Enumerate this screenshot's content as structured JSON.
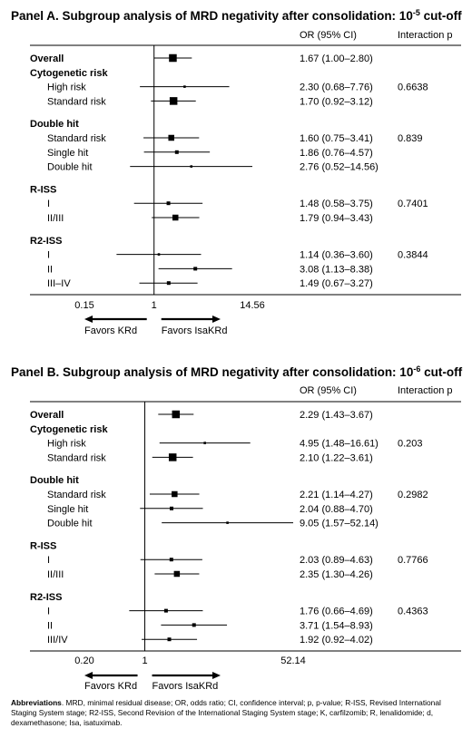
{
  "chart_data": [
    {
      "type": "forest",
      "title": "Panel A. Subgroup analysis of MRD negativity after consolidation: 10",
      "title_superscript": "-5",
      "title_suffix": " cut-off",
      "col_or": "OR (95% CI)",
      "col_p": "Interaction p",
      "x_scale": "log",
      "x_ticks": [
        "0.15",
        "1",
        "14.56"
      ],
      "x_tick_values": [
        0.15,
        1,
        14.56
      ],
      "favors_left": "Favors KRd",
      "favors_right": "Favors IsaKRd",
      "rows": [
        {
          "label": "Overall",
          "header": true,
          "or": 1.67,
          "lo": 1.0,
          "hi": 2.8,
          "text": "1.67 (1.00–2.80)",
          "p": "",
          "size": "large"
        },
        {
          "label": "Cytogenetic risk",
          "header": true
        },
        {
          "label": "High risk",
          "or": 2.3,
          "lo": 0.68,
          "hi": 7.76,
          "text": "2.30 (0.68–7.76)",
          "p": "0.6638",
          "size": "tiny"
        },
        {
          "label": "Standard risk",
          "or": 1.7,
          "lo": 0.92,
          "hi": 3.12,
          "text": "1.70 (0.92–3.12)",
          "p": "",
          "size": "large"
        },
        {
          "gap": true
        },
        {
          "label": "Double hit",
          "header": true
        },
        {
          "label": "Standard risk",
          "or": 1.6,
          "lo": 0.75,
          "hi": 3.41,
          "text": "1.60 (0.75–3.41)",
          "p": "0.839",
          "size": "medium"
        },
        {
          "label": "Single hit",
          "or": 1.86,
          "lo": 0.76,
          "hi": 4.57,
          "text": "1.86 (0.76–4.57)",
          "p": "",
          "size": "small"
        },
        {
          "label": "Double hit",
          "or": 2.76,
          "lo": 0.52,
          "hi": 14.56,
          "text": "2.76 (0.52–14.56)",
          "p": "",
          "size": "tiny"
        },
        {
          "gap": true
        },
        {
          "label": "R-ISS",
          "header": true
        },
        {
          "label": "I",
          "or": 1.48,
          "lo": 0.58,
          "hi": 3.75,
          "text": "1.48 (0.58–3.75)",
          "p": "0.7401",
          "size": "small"
        },
        {
          "label": "II/III",
          "or": 1.79,
          "lo": 0.94,
          "hi": 3.43,
          "text": "1.79 (0.94–3.43)",
          "p": "",
          "size": "medium"
        },
        {
          "gap": true
        },
        {
          "label": "R2-ISS",
          "header": true
        },
        {
          "label": "I",
          "or": 1.14,
          "lo": 0.36,
          "hi": 3.6,
          "text": "1.14 (0.36–3.60)",
          "p": "0.3844",
          "size": "tiny"
        },
        {
          "label": "II",
          "or": 3.08,
          "lo": 1.13,
          "hi": 8.38,
          "text": "3.08 (1.13–8.38)",
          "p": "",
          "size": "small"
        },
        {
          "label": "III–IV",
          "or": 1.49,
          "lo": 0.67,
          "hi": 3.27,
          "text": "1.49 (0.67–3.27)",
          "p": "",
          "size": "small"
        }
      ]
    },
    {
      "type": "forest",
      "title": "Panel B. Subgroup analysis of MRD negativity after consolidation: 10",
      "title_superscript": "-6",
      "title_suffix": " cut-off",
      "col_or": "OR (95% CI)",
      "col_p": "Interaction p",
      "x_scale": "log",
      "x_ticks": [
        "0.20",
        "1",
        "52.14"
      ],
      "x_tick_values": [
        0.2,
        1,
        52.14
      ],
      "favors_left": "Favors KRd",
      "favors_right": "Favors IsaKRd",
      "rows": [
        {
          "label": "Overall",
          "header": true,
          "or": 2.29,
          "lo": 1.43,
          "hi": 3.67,
          "text": "2.29 (1.43–3.67)",
          "p": "",
          "size": "large"
        },
        {
          "label": "Cytogenetic risk",
          "header": true
        },
        {
          "label": "High risk",
          "or": 4.95,
          "lo": 1.48,
          "hi": 16.61,
          "text": "4.95 (1.48–16.61)",
          "p": "0.203",
          "size": "tiny"
        },
        {
          "label": "Standard risk",
          "or": 2.1,
          "lo": 1.22,
          "hi": 3.61,
          "text": "2.10 (1.22–3.61)",
          "p": "",
          "size": "large"
        },
        {
          "gap": true
        },
        {
          "label": "Double hit",
          "header": true
        },
        {
          "label": "Standard risk",
          "or": 2.21,
          "lo": 1.14,
          "hi": 4.27,
          "text": "2.21 (1.14–4.27)",
          "p": "0.2982",
          "size": "medium"
        },
        {
          "label": "Single hit",
          "or": 2.04,
          "lo": 0.88,
          "hi": 4.7,
          "text": "2.04 (0.88–4.70)",
          "p": "",
          "size": "small"
        },
        {
          "label": "Double hit",
          "or": 9.05,
          "lo": 1.57,
          "hi": 52.14,
          "text": "9.05 (1.57–52.14)",
          "p": "",
          "size": "tiny"
        },
        {
          "gap": true
        },
        {
          "label": "R-ISS",
          "header": true
        },
        {
          "label": "I",
          "or": 2.03,
          "lo": 0.89,
          "hi": 4.63,
          "text": "2.03 (0.89–4.63)",
          "p": "0.7766",
          "size": "small"
        },
        {
          "label": "II/III",
          "or": 2.35,
          "lo": 1.3,
          "hi": 4.26,
          "text": "2.35 (1.30–4.26)",
          "p": "",
          "size": "medium"
        },
        {
          "gap": true
        },
        {
          "label": "R2-ISS",
          "header": true
        },
        {
          "label": "I",
          "or": 1.76,
          "lo": 0.66,
          "hi": 4.69,
          "text": "1.76 (0.66–4.69)",
          "p": "0.4363",
          "size": "small"
        },
        {
          "label": "II",
          "or": 3.71,
          "lo": 1.54,
          "hi": 8.93,
          "text": "3.71 (1.54–8.93)",
          "p": "",
          "size": "small"
        },
        {
          "label": "III/IV",
          "or": 1.92,
          "lo": 0.92,
          "hi": 4.02,
          "text": "1.92 (0.92–4.02)",
          "p": "",
          "size": "small"
        }
      ]
    }
  ],
  "footnote": {
    "heading": "Abbreviations",
    "text": ". MRD, minimal residual disease; OR, odds ratio; CI, confidence interval; p, p-value; R-ISS, Revised International Staging System stage; R2-ISS, Second Revision of the International Staging System stage; K, carfilzomib; R, lenalidomide; d, dexamethasone; Isa, isatuximab."
  }
}
